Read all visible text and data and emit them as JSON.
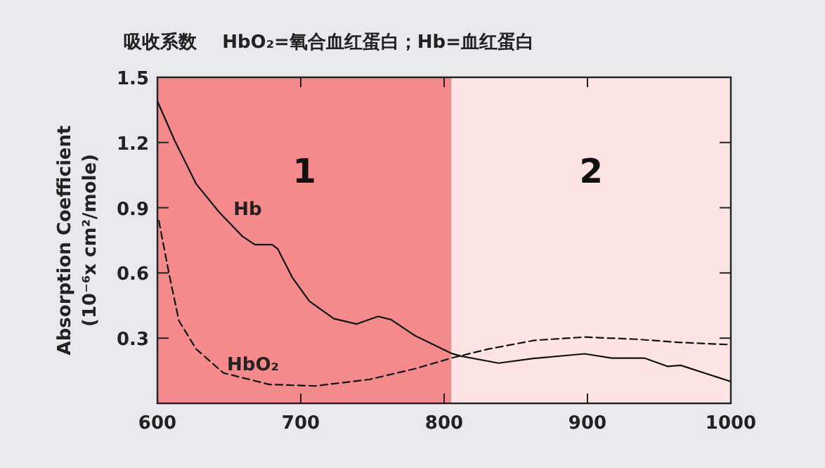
{
  "chart_data": {
    "type": "line",
    "title": "吸收系数    HbO₂=氧合血红蛋白；Hb=血红蛋白",
    "ylabel": "Absorption Coefficient\n(10⁻⁶x cm²/mole)",
    "xlim": [
      600,
      1000
    ],
    "xticks": [
      600,
      700,
      800,
      900,
      1000
    ],
    "ylim": [
      0,
      1.5
    ],
    "yticks": [
      0.3,
      0.6,
      0.9,
      1.2,
      1.5
    ],
    "grid": false,
    "bands": [
      {
        "axis": "x",
        "from": 600,
        "to": 805,
        "label": "1",
        "color": "#f48a8a"
      },
      {
        "axis": "x",
        "from": 805,
        "to": 1000,
        "label": "2",
        "color": "#fde3e4"
      }
    ],
    "series": [
      {
        "name": "Hb",
        "color": "#111111",
        "line_style": "solid",
        "x": [
          600,
          612,
          627,
          643,
          659,
          668,
          680,
          684,
          694,
          706,
          723,
          739,
          754,
          763,
          780,
          805,
          812,
          838,
          863,
          898,
          917,
          940,
          956,
          965,
          1000
        ],
        "values": [
          1.39,
          1.21,
          1.01,
          0.88,
          0.77,
          0.73,
          0.73,
          0.71,
          0.58,
          0.47,
          0.39,
          0.365,
          0.4,
          0.385,
          0.31,
          0.23,
          0.217,
          0.185,
          0.207,
          0.228,
          0.208,
          0.208,
          0.17,
          0.175,
          0.1
        ]
      },
      {
        "name": "HbO₂",
        "color": "#111111",
        "line_style": "dashed",
        "x": [
          601,
          608,
          615,
          627,
          646,
          678,
          710,
          748,
          780,
          806,
          831,
          863,
          898,
          934,
          965,
          1000
        ],
        "values": [
          0.84,
          0.6,
          0.38,
          0.25,
          0.14,
          0.087,
          0.08,
          0.11,
          0.16,
          0.21,
          0.25,
          0.29,
          0.305,
          0.295,
          0.28,
          0.27
        ]
      }
    ]
  }
}
